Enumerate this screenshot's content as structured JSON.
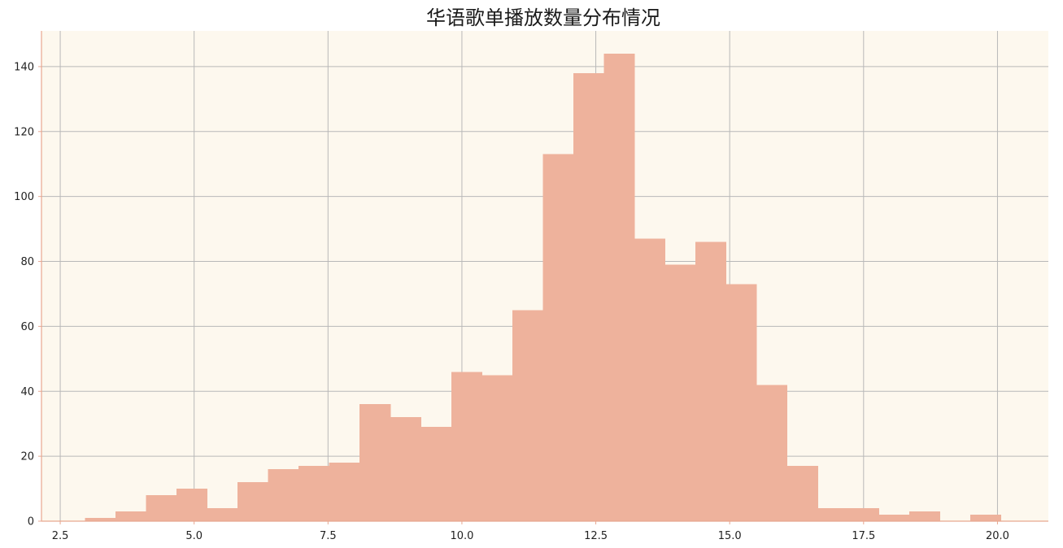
{
  "chart_data": {
    "type": "bar",
    "title": "华语歌单播放数量分布情况",
    "xlabel": "",
    "ylabel": "",
    "xlim": [
      2.15,
      20.95
    ],
    "ylim": [
      0,
      151
    ],
    "grid": true,
    "x_ticks": [
      2.5,
      5.0,
      7.5,
      10.0,
      12.5,
      15.0,
      17.5,
      20.0
    ],
    "x_tick_labels": [
      "2.5",
      "5.0",
      "7.5",
      "10.0",
      "12.5",
      "15.0",
      "17.5",
      "20.0"
    ],
    "y_ticks": [
      0,
      20,
      40,
      60,
      80,
      100,
      120,
      140
    ],
    "y_tick_labels": [
      "0",
      "20",
      "40",
      "60",
      "80",
      "100",
      "120",
      "140"
    ],
    "bin_start": 2.96,
    "bin_width": 0.57,
    "values": [
      1,
      3,
      8,
      10,
      4,
      12,
      16,
      17,
      18,
      36,
      32,
      29,
      46,
      45,
      65,
      113,
      138,
      144,
      87,
      79,
      86,
      73,
      42,
      17,
      4,
      4,
      2,
      3,
      0,
      2
    ]
  },
  "colors": {
    "bar_fill": "#eeb29c",
    "plot_bg": "#fdf8ee",
    "grid": "#b8b8b8",
    "axis": "#e8a790",
    "text": "#222222"
  }
}
